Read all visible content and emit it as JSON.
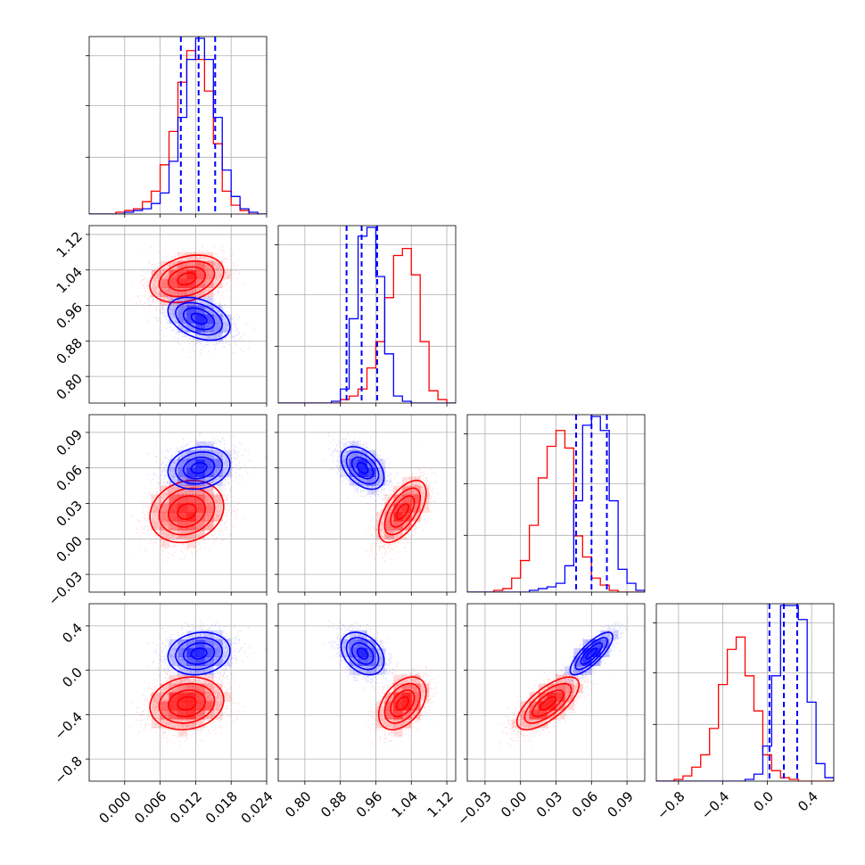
{
  "figure": {
    "background": "#ffffff",
    "grid": true,
    "colors": {
      "blue": "#0000ff",
      "red": "#ff0000",
      "grid": "#b0b0b0"
    }
  },
  "chart_data": {
    "type": "corner",
    "parameters": 4,
    "series": [
      {
        "color": "#0000ff",
        "means": [
          0.0125,
          0.93,
          0.06,
          0.15
        ],
        "stds": [
          0.0026,
          0.024,
          0.009,
          0.095
        ],
        "correlations": [
          [
            0.0,
            1
          ],
          [
            -0.35,
            0
          ],
          [
            -0.45,
            1
          ],
          [
            0.8,
            2
          ]
        ],
        "quantiles": [
          [
            0.0095,
            0.0125,
            0.0153
          ],
          [
            0.894,
            0.928,
            0.963
          ],
          [
            0.047,
            0.06,
            0.073
          ],
          [
            0.02,
            0.15,
            0.27
          ]
        ]
      },
      {
        "color": "#ff0000",
        "means": [
          0.0105,
          1.02,
          0.023,
          -0.3
        ],
        "stds": [
          0.0031,
          0.026,
          0.013,
          0.12
        ],
        "correlations": [
          [
            0.0,
            1
          ],
          [
            0.3,
            0
          ],
          [
            0.6,
            1
          ],
          [
            0.7,
            2
          ]
        ]
      }
    ],
    "quantile_lines_color": "#0000ff",
    "quantile_lines_style": "dashed",
    "axes": [
      {
        "range": [
          -0.006,
          0.024
        ],
        "ticks": [
          "0.000",
          "0.006",
          "0.012",
          "0.018",
          "0.024"
        ],
        "tick_values": [
          0.0,
          0.006,
          0.012,
          0.018,
          0.024
        ]
      },
      {
        "range": [
          0.74,
          1.14
        ],
        "ticks": [
          "0.80",
          "0.88",
          "0.96",
          "1.04",
          "1.12"
        ],
        "tick_values": [
          0.8,
          0.88,
          0.96,
          1.04,
          1.12
        ]
      },
      {
        "range": [
          -0.045,
          0.105
        ],
        "ticks": [
          "−0.03",
          "0.00",
          "0.03",
          "0.06",
          "0.09"
        ],
        "tick_values": [
          -0.03,
          0.0,
          0.03,
          0.06,
          0.09
        ]
      },
      {
        "range": [
          -1.0,
          0.6
        ],
        "ticks": [
          "−0.8",
          "−0.4",
          "0.0",
          "0.4"
        ],
        "tick_values": [
          -0.8,
          -0.4,
          0.0,
          0.4
        ]
      }
    ],
    "histograms": [
      {
        "edges": [
          -0.006,
          -0.0045,
          -0.003,
          -0.0015,
          0.0,
          0.0015,
          0.003,
          0.0045,
          0.006,
          0.0075,
          0.009,
          0.0105,
          0.012,
          0.0135,
          0.015,
          0.0165,
          0.018,
          0.0195,
          0.021,
          0.0225,
          0.024
        ],
        "blue": [
          0,
          0,
          0,
          0,
          1,
          2,
          3,
          6,
          12,
          30,
          55,
          88,
          100,
          88,
          55,
          25,
          10,
          3,
          1,
          0
        ],
        "red": [
          0,
          0,
          0,
          1,
          2,
          3,
          7,
          13,
          28,
          47,
          75,
          93,
          88,
          70,
          40,
          13,
          5,
          2,
          0,
          0
        ]
      },
      {
        "edges": [
          0.74,
          0.76,
          0.78,
          0.8,
          0.82,
          0.84,
          0.86,
          0.88,
          0.9,
          0.92,
          0.94,
          0.96,
          0.98,
          1.0,
          1.02,
          1.04,
          1.06,
          1.08,
          1.1,
          1.12,
          1.14
        ],
        "blue": [
          0,
          0,
          0,
          0,
          0,
          0,
          1,
          8,
          48,
          95,
          100,
          72,
          28,
          4,
          1,
          0,
          0,
          0,
          0,
          0
        ],
        "red": [
          0,
          0,
          0,
          0,
          0,
          0,
          0,
          2,
          4,
          8,
          20,
          35,
          60,
          84,
          88,
          73,
          35,
          7,
          2,
          0
        ]
      },
      {
        "edges": [
          -0.045,
          -0.0375,
          -0.03,
          -0.0225,
          -0.015,
          -0.0075,
          0.0,
          0.0075,
          0.015,
          0.0225,
          0.03,
          0.0375,
          0.045,
          0.0525,
          0.06,
          0.0675,
          0.075,
          0.0825,
          0.09,
          0.0975,
          0.105
        ],
        "blue": [
          0,
          0,
          0,
          0,
          0,
          0,
          0,
          1,
          2,
          3,
          5,
          15,
          52,
          95,
          100,
          92,
          52,
          13,
          5,
          1
        ],
        "red": [
          0,
          0,
          0,
          1,
          2,
          8,
          18,
          38,
          65,
          83,
          92,
          82,
          32,
          20,
          8,
          4,
          1,
          0,
          0,
          0
        ]
      },
      {
        "edges": [
          -1.0,
          -0.92,
          -0.84,
          -0.76,
          -0.68,
          -0.6,
          -0.52,
          -0.44,
          -0.36,
          -0.28,
          -0.2,
          -0.12,
          -0.04,
          0.04,
          0.12,
          0.2,
          0.28,
          0.36,
          0.44,
          0.52,
          0.6
        ],
        "blue": [
          0,
          0,
          0,
          0,
          0,
          0,
          0,
          0,
          0,
          0,
          1,
          4,
          20,
          60,
          100,
          100,
          92,
          45,
          10,
          2
        ],
        "red": [
          0,
          0,
          1,
          3,
          8,
          15,
          30,
          55,
          75,
          82,
          60,
          40,
          15,
          6,
          2,
          1,
          0,
          0,
          0,
          0
        ]
      }
    ]
  }
}
